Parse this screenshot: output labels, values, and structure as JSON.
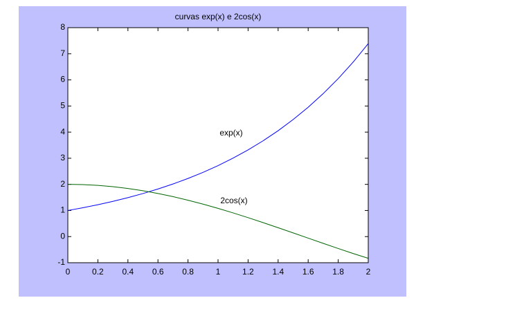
{
  "chart_data": {
    "type": "line",
    "title": "curvas exp(x) e 2cos(x)",
    "x": [
      0,
      0.1,
      0.2,
      0.3,
      0.4,
      0.5,
      0.6,
      0.7,
      0.8,
      0.9,
      1.0,
      1.1,
      1.2,
      1.3,
      1.4,
      1.5,
      1.6,
      1.7,
      1.8,
      1.9,
      2.0
    ],
    "series": [
      {
        "color": "#0000ff",
        "values": [
          1,
          1.105,
          1.221,
          1.35,
          1.492,
          1.649,
          1.822,
          2.014,
          2.226,
          2.46,
          2.718,
          3.004,
          3.32,
          3.669,
          4.055,
          4.482,
          4.953,
          5.474,
          6.05,
          6.686,
          7.389
        ]
      },
      {
        "color": "#006400",
        "values": [
          2,
          1.99,
          1.96,
          1.911,
          1.842,
          1.755,
          1.651,
          1.53,
          1.393,
          1.243,
          1.081,
          0.907,
          0.725,
          0.535,
          0.34,
          0.141,
          -0.058,
          -0.258,
          -0.455,
          -0.649,
          -0.832
        ]
      }
    ],
    "annotations": [
      "exp(x)",
      "2cos(x)"
    ],
    "xlim": [
      0,
      2
    ],
    "xticks": [
      0,
      0.2,
      0.4,
      0.6,
      0.8,
      1,
      1.2,
      1.4,
      1.6,
      1.8,
      2
    ],
    "ylim": [
      -1,
      8
    ],
    "yticks": [
      -1,
      0,
      1,
      2,
      3,
      4,
      5,
      6,
      7,
      8
    ],
    "figure_color": "#c0c0ff",
    "axes_color": "#ffffff"
  }
}
